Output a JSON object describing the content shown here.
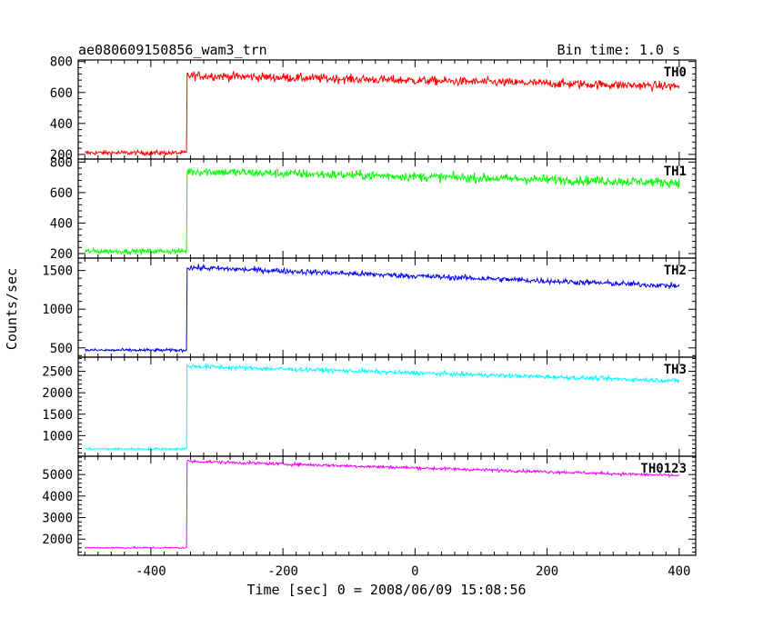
{
  "header": {
    "title": "ae080609150856_wam3_trn",
    "bin_time": "Bin time: 1.0 s"
  },
  "chart_data": {
    "type": "line",
    "title": "ae080609150856_wam3_trn",
    "subtitle": "Bin time: 1.0 s",
    "xlabel": "Time [sec] 0 = 2008/06/09 15:08:56",
    "ylabel": "Counts/sec",
    "xlim": [
      -510,
      425
    ],
    "x_ticks": [
      -400,
      -200,
      0,
      200,
      400
    ],
    "x_range": [
      -500,
      400
    ],
    "step_time": -345,
    "grid": false,
    "legend": "none",
    "panels": [
      {
        "name": "TH0",
        "color": "#ff0000",
        "ylim": [
          170,
          810
        ],
        "yticks": [
          200,
          400,
          600,
          800
        ],
        "pre_level": 210,
        "post_start": 710,
        "post_end": 640,
        "noise": 28
      },
      {
        "name": "TH1",
        "color": "#00ff00",
        "ylim": [
          170,
          820
        ],
        "yticks": [
          200,
          400,
          600,
          800
        ],
        "pre_level": 215,
        "post_start": 740,
        "post_end": 665,
        "noise": 30
      },
      {
        "name": "TH2",
        "color": "#0000ff",
        "ylim": [
          380,
          1660
        ],
        "yticks": [
          500,
          1000,
          1500
        ],
        "pre_level": 470,
        "post_start": 1540,
        "post_end": 1300,
        "noise": 35
      },
      {
        "name": "TH3",
        "color": "#00ffff",
        "ylim": [
          520,
          2830
        ],
        "yticks": [
          1000,
          1500,
          2000,
          2500
        ],
        "pre_level": 690,
        "post_start": 2620,
        "post_end": 2280,
        "noise": 50
      },
      {
        "name": "TH0123",
        "color": "#ff00ff",
        "ylim": [
          1250,
          5850
        ],
        "yticks": [
          2000,
          3000,
          4000,
          5000
        ],
        "pre_level": 1600,
        "post_start": 5620,
        "post_end": 4950,
        "noise": 70
      }
    ]
  }
}
